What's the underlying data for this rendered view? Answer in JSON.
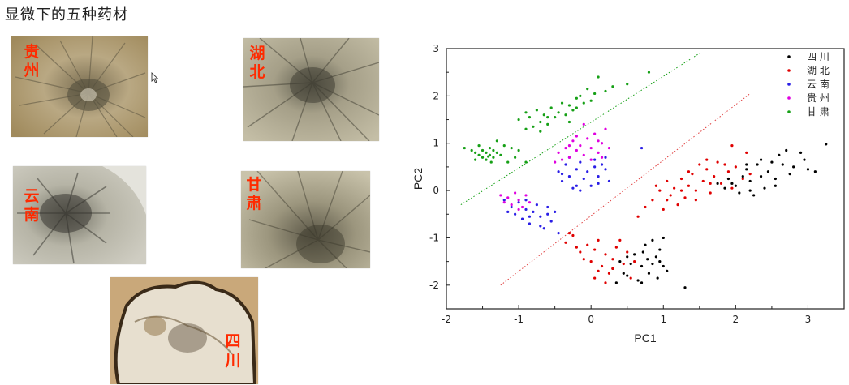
{
  "slide": {
    "title": "显微下的五种药材"
  },
  "micrographs": [
    {
      "key": "guizhou",
      "label": [
        "贵",
        "州"
      ]
    },
    {
      "key": "hubei",
      "label": [
        "湖",
        "北"
      ]
    },
    {
      "key": "yunnan",
      "label": [
        "云",
        "南"
      ]
    },
    {
      "key": "gansu",
      "label": [
        "甘",
        "肃"
      ]
    },
    {
      "key": "sichuan",
      "label": [
        "四",
        "川"
      ]
    }
  ],
  "chart_data": {
    "type": "scatter",
    "xlabel": "PC1",
    "ylabel": "PC2",
    "xlim": [
      -2,
      3.5
    ],
    "ylim": [
      -2.5,
      3
    ],
    "xticks": [
      -2,
      -1,
      0,
      1,
      2,
      3
    ],
    "yticks": [
      -2,
      -1,
      0,
      1,
      2,
      3
    ],
    "legend_position": "top-right",
    "grid": false,
    "series": [
      {
        "name": "四 川",
        "color": "#000000",
        "points": [
          [
            1.75,
            0.15
          ],
          [
            1.85,
            0.05
          ],
          [
            1.9,
            0.25
          ],
          [
            2.0,
            0.1
          ],
          [
            2.1,
            0.3
          ],
          [
            2.15,
            0.45
          ],
          [
            2.2,
            0.2
          ],
          [
            2.3,
            0.55
          ],
          [
            2.35,
            0.3
          ],
          [
            2.45,
            0.4
          ],
          [
            2.5,
            0.6
          ],
          [
            2.55,
            0.25
          ],
          [
            2.6,
            0.75
          ],
          [
            2.7,
            0.85
          ],
          [
            2.8,
            0.5
          ],
          [
            2.9,
            0.8
          ],
          [
            3.0,
            0.45
          ],
          [
            3.1,
            0.4
          ],
          [
            3.25,
            0.98
          ],
          [
            2.2,
            0.0
          ],
          [
            2.4,
            0.05
          ],
          [
            1.95,
            0.15
          ],
          [
            2.05,
            -0.05
          ],
          [
            2.25,
            -0.1
          ],
          [
            2.65,
            0.55
          ],
          [
            2.75,
            0.35
          ],
          [
            2.95,
            0.65
          ],
          [
            2.35,
            0.65
          ],
          [
            2.15,
            0.55
          ],
          [
            2.55,
            0.1
          ],
          [
            0.3,
            -1.65
          ],
          [
            0.4,
            -1.5
          ],
          [
            0.45,
            -1.75
          ],
          [
            0.5,
            -1.8
          ],
          [
            0.55,
            -1.55
          ],
          [
            0.6,
            -1.35
          ],
          [
            0.65,
            -1.9
          ],
          [
            0.7,
            -1.6
          ],
          [
            0.72,
            -1.3
          ],
          [
            0.78,
            -1.45
          ],
          [
            0.8,
            -1.75
          ],
          [
            0.85,
            -1.55
          ],
          [
            0.85,
            -1.05
          ],
          [
            0.9,
            -1.4
          ],
          [
            0.92,
            -1.85
          ],
          [
            0.95,
            -1.25
          ],
          [
            1.0,
            -1.6
          ],
          [
            1.0,
            -1.0
          ],
          [
            1.05,
            -1.7
          ],
          [
            1.3,
            -2.05
          ],
          [
            0.35,
            -1.95
          ],
          [
            0.5,
            -1.4
          ],
          [
            0.7,
            -1.95
          ],
          [
            0.75,
            -1.15
          ],
          [
            0.95,
            -1.5
          ]
        ]
      },
      {
        "name": "湖 北",
        "color": "#e00000",
        "points": [
          [
            0.65,
            -0.55
          ],
          [
            0.75,
            -0.35
          ],
          [
            0.85,
            -0.2
          ],
          [
            0.95,
            0.0
          ],
          [
            1.0,
            -0.4
          ],
          [
            1.05,
            0.2
          ],
          [
            1.1,
            -0.1
          ],
          [
            1.15,
            0.05
          ],
          [
            1.25,
            0.25
          ],
          [
            1.3,
            -0.15
          ],
          [
            1.35,
            0.1
          ],
          [
            1.4,
            0.35
          ],
          [
            1.45,
            0.0
          ],
          [
            1.55,
            0.2
          ],
          [
            1.6,
            0.45
          ],
          [
            1.65,
            -0.05
          ],
          [
            1.7,
            0.3
          ],
          [
            1.75,
            0.6
          ],
          [
            1.8,
            0.15
          ],
          [
            1.9,
            0.4
          ],
          [
            1.95,
            0.05
          ],
          [
            2.0,
            0.5
          ],
          [
            2.1,
            0.25
          ],
          [
            2.15,
            0.8
          ],
          [
            1.5,
            0.55
          ],
          [
            1.2,
            -0.3
          ],
          [
            0.9,
            0.1
          ],
          [
            1.35,
            0.4
          ],
          [
            1.05,
            -0.2
          ],
          [
            1.65,
            0.15
          ],
          [
            1.85,
            0.55
          ],
          [
            2.2,
            0.35
          ],
          [
            1.45,
            -0.2
          ],
          [
            1.25,
            0.0
          ],
          [
            1.95,
            0.95
          ],
          [
            1.6,
            0.65
          ],
          [
            -0.35,
            -1.1
          ],
          [
            -0.25,
            -0.95
          ],
          [
            -0.15,
            -1.3
          ],
          [
            -0.05,
            -1.15
          ],
          [
            0.0,
            -1.5
          ],
          [
            0.05,
            -1.25
          ],
          [
            0.1,
            -1.05
          ],
          [
            0.15,
            -1.6
          ],
          [
            0.2,
            -1.35
          ],
          [
            0.25,
            -1.75
          ],
          [
            0.3,
            -1.45
          ],
          [
            0.35,
            -1.2
          ],
          [
            0.45,
            -1.55
          ],
          [
            0.5,
            -1.3
          ],
          [
            0.55,
            -1.85
          ],
          [
            -0.1,
            -1.45
          ],
          [
            0.1,
            -1.7
          ],
          [
            0.4,
            -1.05
          ],
          [
            -0.2,
            -1.2
          ],
          [
            0.05,
            -1.85
          ],
          [
            0.3,
            -1.65
          ],
          [
            0.6,
            -1.5
          ],
          [
            0.2,
            -1.95
          ],
          [
            -0.3,
            -0.9
          ]
        ]
      },
      {
        "name": "云 南",
        "color": "#2a1ee6",
        "points": [
          [
            -1.2,
            -0.2
          ],
          [
            -1.1,
            -0.35
          ],
          [
            -1.05,
            -0.5
          ],
          [
            -1.0,
            -0.25
          ],
          [
            -0.95,
            -0.6
          ],
          [
            -0.9,
            -0.4
          ],
          [
            -0.85,
            -0.7
          ],
          [
            -0.8,
            -0.45
          ],
          [
            -0.75,
            -0.3
          ],
          [
            -0.7,
            -0.55
          ],
          [
            -0.65,
            -0.8
          ],
          [
            -0.6,
            -0.5
          ],
          [
            -0.55,
            -0.65
          ],
          [
            -0.5,
            -0.45
          ],
          [
            -0.45,
            -0.9
          ],
          [
            -1.15,
            -0.45
          ],
          [
            -0.9,
            -0.2
          ],
          [
            -0.7,
            -0.75
          ],
          [
            -0.85,
            -0.55
          ],
          [
            -0.6,
            -0.35
          ],
          [
            -0.45,
            0.4
          ],
          [
            -0.4,
            0.2
          ],
          [
            -0.35,
            0.55
          ],
          [
            -0.3,
            0.3
          ],
          [
            -0.25,
            0.05
          ],
          [
            -0.2,
            0.45
          ],
          [
            -0.15,
            0.6
          ],
          [
            -0.1,
            0.25
          ],
          [
            -0.05,
            0.4
          ],
          [
            0.0,
            0.1
          ],
          [
            0.05,
            0.5
          ],
          [
            0.1,
            0.3
          ],
          [
            0.15,
            0.55
          ],
          [
            0.2,
            0.45
          ],
          [
            0.25,
            0.2
          ],
          [
            -0.3,
            0.7
          ],
          [
            -0.15,
            0.0
          ],
          [
            0.05,
            0.65
          ],
          [
            0.2,
            0.7
          ],
          [
            0.7,
            0.9
          ],
          [
            -0.4,
            0.35
          ],
          [
            0.1,
            0.15
          ],
          [
            -0.2,
            0.1
          ]
        ]
      },
      {
        "name": "贵 州",
        "color": "#e000e0",
        "points": [
          [
            -1.25,
            -0.1
          ],
          [
            -1.15,
            -0.15
          ],
          [
            -1.1,
            -0.3
          ],
          [
            -1.05,
            -0.05
          ],
          [
            -1.0,
            -0.2
          ],
          [
            -0.95,
            -0.35
          ],
          [
            -0.9,
            -0.1
          ],
          [
            -0.85,
            -0.25
          ],
          [
            -1.2,
            -0.25
          ],
          [
            -1.0,
            -0.4
          ],
          [
            -0.5,
            0.6
          ],
          [
            -0.45,
            0.8
          ],
          [
            -0.4,
            0.65
          ],
          [
            -0.35,
            0.9
          ],
          [
            -0.3,
            0.7
          ],
          [
            -0.25,
            1.05
          ],
          [
            -0.2,
            0.85
          ],
          [
            -0.15,
            0.95
          ],
          [
            -0.1,
            0.75
          ],
          [
            -0.05,
            1.1
          ],
          [
            0.0,
            0.9
          ],
          [
            0.05,
            1.2
          ],
          [
            0.1,
            0.8
          ],
          [
            0.15,
            1.0
          ],
          [
            0.2,
            1.3
          ],
          [
            0.25,
            0.9
          ],
          [
            -0.1,
            1.4
          ],
          [
            0.0,
            0.65
          ],
          [
            -0.3,
            0.95
          ],
          [
            0.1,
            1.05
          ],
          [
            -0.2,
            1.15
          ],
          [
            0.15,
            0.7
          ]
        ]
      },
      {
        "name": "甘 肃",
        "color": "#16a016",
        "points": [
          [
            -1.75,
            0.9
          ],
          [
            -1.65,
            0.85
          ],
          [
            -1.6,
            0.8
          ],
          [
            -1.55,
            0.75
          ],
          [
            -1.55,
            0.95
          ],
          [
            -1.5,
            0.7
          ],
          [
            -1.5,
            0.85
          ],
          [
            -1.45,
            0.8
          ],
          [
            -1.45,
            0.65
          ],
          [
            -1.4,
            0.9
          ],
          [
            -1.4,
            0.75
          ],
          [
            -1.35,
            0.85
          ],
          [
            -1.35,
            0.7
          ],
          [
            -1.3,
            0.8
          ],
          [
            -1.3,
            1.05
          ],
          [
            -1.25,
            0.75
          ],
          [
            -1.2,
            0.95
          ],
          [
            -1.15,
            0.6
          ],
          [
            -1.1,
            0.9
          ],
          [
            -1.05,
            0.7
          ],
          [
            -1.0,
            0.85
          ],
          [
            -0.9,
            0.6
          ],
          [
            -1.6,
            0.65
          ],
          [
            -1.42,
            0.72
          ],
          [
            -1.38,
            0.6
          ],
          [
            -1.0,
            1.5
          ],
          [
            -0.9,
            1.3
          ],
          [
            -0.85,
            1.55
          ],
          [
            -0.8,
            1.35
          ],
          [
            -0.75,
            1.7
          ],
          [
            -0.7,
            1.45
          ],
          [
            -0.65,
            1.6
          ],
          [
            -0.6,
            1.4
          ],
          [
            -0.55,
            1.75
          ],
          [
            -0.5,
            1.55
          ],
          [
            -0.45,
            1.65
          ],
          [
            -0.4,
            1.85
          ],
          [
            -0.35,
            1.6
          ],
          [
            -0.3,
            1.8
          ],
          [
            -0.25,
            1.7
          ],
          [
            -0.2,
            1.95
          ],
          [
            -0.15,
            2.0
          ],
          [
            -0.1,
            1.85
          ],
          [
            -0.05,
            2.15
          ],
          [
            0.0,
            1.9
          ],
          [
            0.05,
            2.05
          ],
          [
            0.1,
            2.4
          ],
          [
            0.2,
            2.1
          ],
          [
            0.3,
            2.2
          ],
          [
            0.5,
            2.25
          ],
          [
            0.8,
            2.5
          ],
          [
            -0.7,
            1.25
          ],
          [
            -0.6,
            1.55
          ],
          [
            -0.3,
            1.45
          ],
          [
            -0.9,
            1.65
          ],
          [
            -0.2,
            1.75
          ]
        ]
      }
    ],
    "boundaries": [
      {
        "color": "#16a016",
        "from": [
          -1.8,
          -0.3
        ],
        "to": [
          1.5,
          2.9
        ]
      },
      {
        "color": "#e04040",
        "from": [
          -1.25,
          -2.0
        ],
        "to": [
          2.2,
          2.05
        ]
      }
    ]
  }
}
